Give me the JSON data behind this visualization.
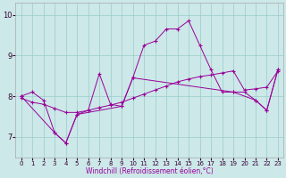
{
  "title": "",
  "xlabel": "Windchill (Refroidissement éolien,°C)",
  "bg_color": "#cce8e8",
  "line_color": "#990099",
  "grid_color": "#99cccc",
  "xlim": [
    -0.5,
    23.5
  ],
  "ylim": [
    6.5,
    10.3
  ],
  "yticks": [
    7,
    8,
    9,
    10
  ],
  "xticks": [
    0,
    1,
    2,
    3,
    4,
    5,
    6,
    7,
    8,
    9,
    10,
    11,
    12,
    13,
    14,
    15,
    16,
    17,
    18,
    19,
    20,
    21,
    22,
    23
  ],
  "line1_x": [
    0,
    1,
    2,
    3,
    4,
    5,
    6,
    7,
    8,
    9,
    10,
    11,
    12,
    13,
    14,
    15,
    16,
    17,
    18,
    19,
    20,
    21,
    22,
    23
  ],
  "line1_y": [
    8.0,
    8.1,
    7.9,
    7.1,
    6.85,
    7.55,
    7.65,
    8.55,
    7.8,
    7.75,
    8.45,
    9.25,
    9.35,
    9.65,
    9.65,
    9.85,
    9.25,
    8.65,
    8.1,
    8.1,
    8.1,
    7.9,
    7.65,
    8.65
  ],
  "line2_x": [
    0,
    1,
    2,
    3,
    4,
    5,
    6,
    7,
    8,
    9,
    10,
    11,
    12,
    13,
    14,
    15,
    16,
    17,
    18,
    19,
    20,
    21,
    22,
    23
  ],
  "line2_y": [
    7.95,
    7.85,
    7.8,
    7.7,
    7.6,
    7.6,
    7.65,
    7.72,
    7.78,
    7.85,
    7.95,
    8.05,
    8.15,
    8.25,
    8.35,
    8.42,
    8.48,
    8.52,
    8.57,
    8.62,
    8.15,
    8.18,
    8.22,
    8.62
  ],
  "line3_x": [
    0,
    3,
    4,
    5,
    9,
    10,
    19,
    21,
    22,
    23
  ],
  "line3_y": [
    8.0,
    7.1,
    6.85,
    7.55,
    7.75,
    8.45,
    8.1,
    7.9,
    7.65,
    8.65
  ],
  "tick_fontsize": 5,
  "xlabel_fontsize": 5.5,
  "marker_size": 3,
  "line_width": 0.7
}
